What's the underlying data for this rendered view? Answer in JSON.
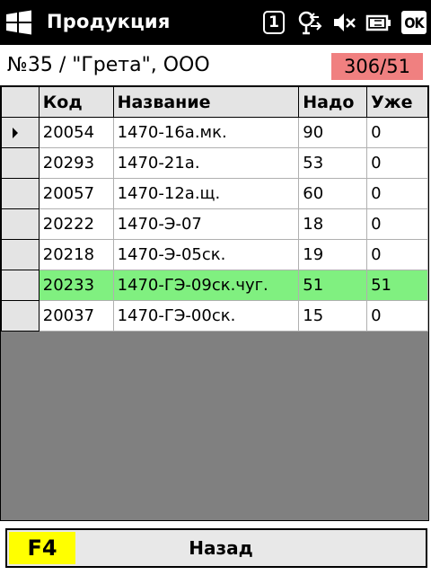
{
  "titlebar": {
    "title": "Продукция",
    "notification_count": "1",
    "ok_label": "OK"
  },
  "order": {
    "text": "№35 / \"Грета\", ООО",
    "count": "306/51"
  },
  "table": {
    "columns": [
      "Код",
      "Название",
      "Надо",
      "Уже"
    ],
    "rows": [
      {
        "code": "20054",
        "name": "1470-16а.мк.",
        "need": "90",
        "done": "0"
      },
      {
        "code": "20293",
        "name": "1470-21а.",
        "need": "53",
        "done": "0"
      },
      {
        "code": "20057",
        "name": "1470-12а.щ.",
        "need": "60",
        "done": "0"
      },
      {
        "code": "20222",
        "name": "1470-Э-07",
        "need": "18",
        "done": "0"
      },
      {
        "code": "20218",
        "name": "1470-Э-05ск.",
        "need": "19",
        "done": "0"
      },
      {
        "code": "20233",
        "name": "1470-ГЭ-09ск.чуг.",
        "need": "51",
        "done": "51"
      },
      {
        "code": "20037",
        "name": "1470-ГЭ-00ск.",
        "need": "15",
        "done": "0"
      }
    ]
  },
  "colors": {
    "badge": "#f08080",
    "completed_row": "#80f080",
    "fkey": "#ffff00"
  },
  "bottom": {
    "fkey_label": "F4",
    "back_label": "Назад"
  }
}
